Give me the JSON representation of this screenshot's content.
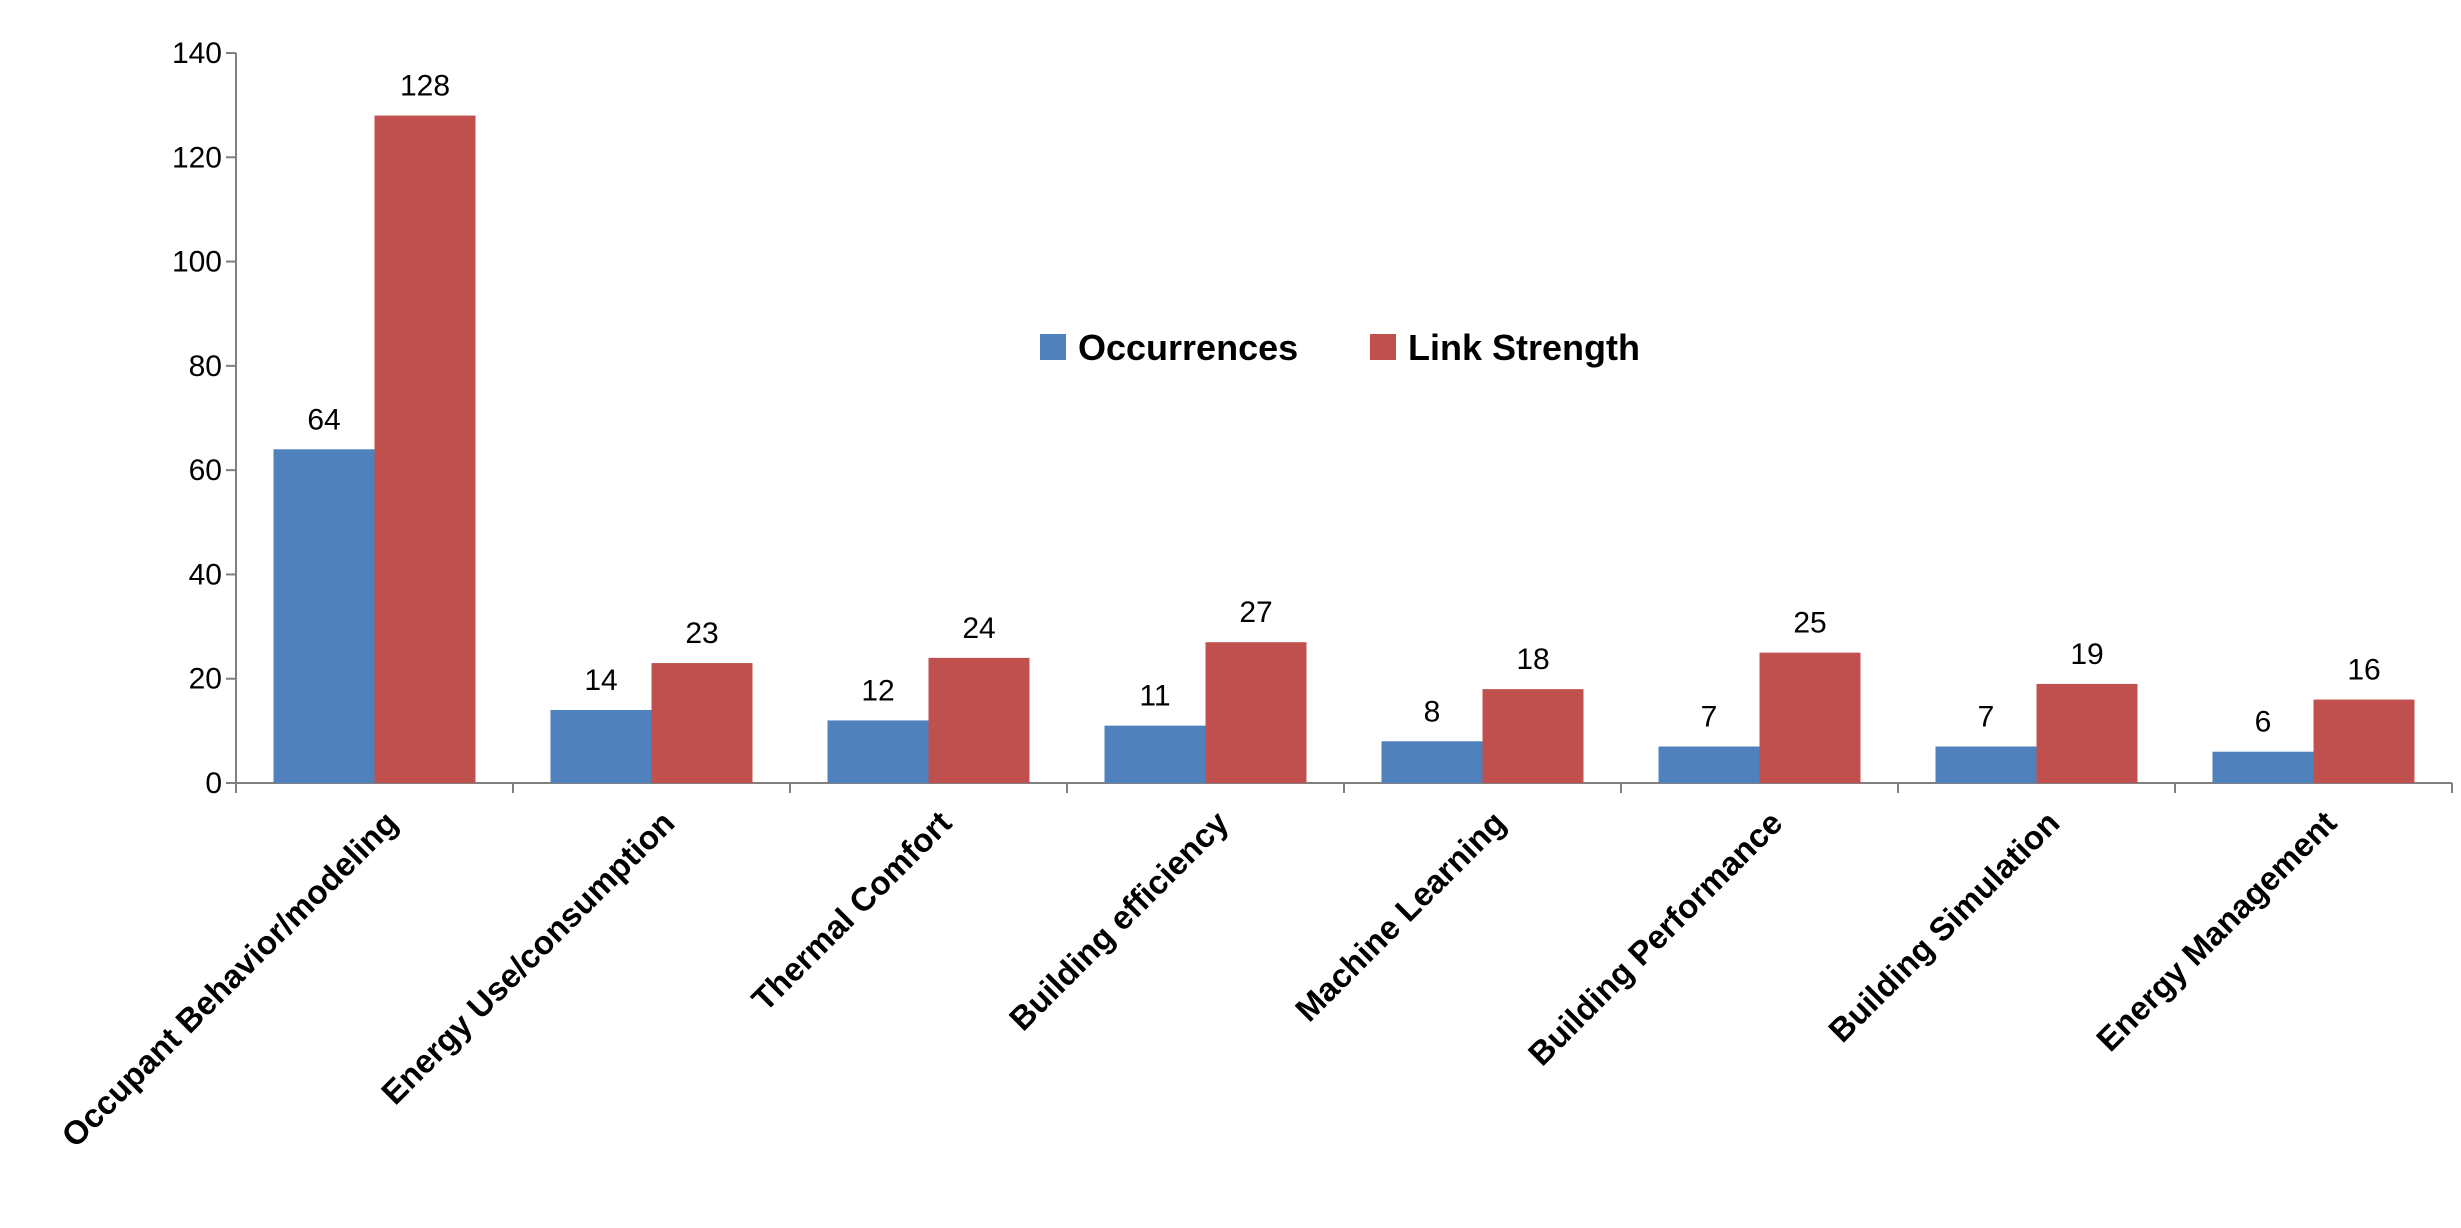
{
  "chart_data": {
    "type": "bar",
    "title": "",
    "xlabel": "",
    "ylabel": "",
    "ylim": [
      0,
      140
    ],
    "yticks": [
      0,
      20,
      40,
      60,
      80,
      100,
      120,
      140
    ],
    "grid": false,
    "legend_position": "center-right",
    "categories": [
      "Occupant Behavior/modeling",
      "Energy Use/consumption",
      "Thermal Comfort",
      "Building efficiency",
      "Machine Learning",
      "Building Performance",
      "Building Simulation",
      "Energy Management"
    ],
    "series": [
      {
        "name": "Occurrences",
        "color": "#4F81BD",
        "values": [
          64,
          14,
          12,
          11,
          8,
          7,
          7,
          6
        ]
      },
      {
        "name": "Link Strength",
        "color": "#C0504D",
        "values": [
          128,
          23,
          24,
          27,
          18,
          25,
          19,
          16
        ]
      }
    ]
  }
}
